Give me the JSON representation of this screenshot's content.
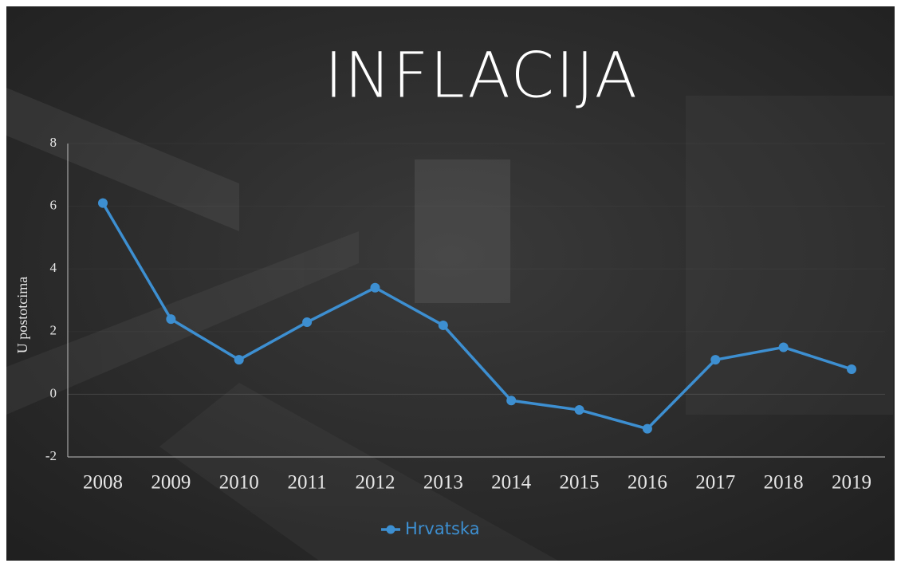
{
  "chart_data": {
    "type": "line",
    "title": "INFLACIJA",
    "y_axis_label": "U postotcima",
    "categories": [
      "2008",
      "2009",
      "2010",
      "2011",
      "2012",
      "2013",
      "2014",
      "2015",
      "2016",
      "2017",
      "2018",
      "2019"
    ],
    "series": [
      {
        "name": "Hrvatska",
        "color": "#3d8fd1",
        "values": [
          6.1,
          2.4,
          1.1,
          2.3,
          3.4,
          2.2,
          -0.2,
          -0.5,
          -1.1,
          1.1,
          1.5,
          0.8
        ]
      }
    ],
    "ylim": [
      -2,
      8
    ],
    "yticks": [
      -2,
      0,
      2,
      4,
      6,
      8
    ],
    "legend": "bottom"
  }
}
